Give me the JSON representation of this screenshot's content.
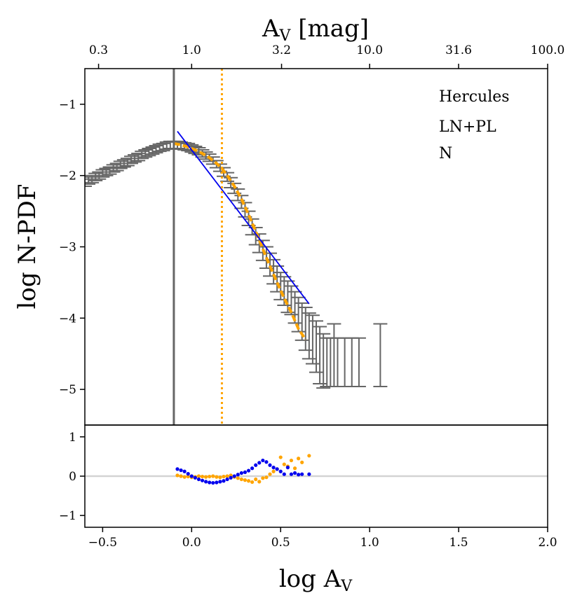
{
  "chart_data": {
    "type": "scatter",
    "top_axis": {
      "label_main": "A",
      "label_sub": "V",
      "label_rest": " [mag]",
      "tick_values": [
        -0.5229,
        0.0,
        0.5051,
        1.0,
        1.4997,
        2.0
      ],
      "tick_labels": [
        "0.3",
        "1.0",
        "3.2",
        "10.0",
        "31.6",
        "100.0"
      ]
    },
    "x_axis": {
      "label_main": "log A",
      "label_sub": "V",
      "range": [
        -0.6,
        2.0
      ],
      "ticks": [
        -0.5,
        0.0,
        0.5,
        1.0,
        1.5,
        2.0
      ],
      "tick_labels": [
        "−0.5",
        "0.0",
        "0.5",
        "1.0",
        "1.5",
        "2.0"
      ]
    },
    "main_panel": {
      "ylabel": "log N-PDF",
      "ylim": [
        -5.5,
        -0.5
      ],
      "yticks": [
        -1,
        -2,
        -3,
        -4,
        -5
      ],
      "ytick_labels": [
        "−1",
        "−2",
        "−3",
        "−4",
        "−5"
      ],
      "annotations": [
        "Hercules",
        "LN+PL",
        "N"
      ],
      "vline_gray": -0.1,
      "vline_orange": 0.17,
      "pdf_points": [
        [
          -0.6,
          -2.1
        ],
        [
          -0.58,
          -2.07
        ],
        [
          -0.56,
          -2.05
        ],
        [
          -0.54,
          -2.02
        ],
        [
          -0.52,
          -2.0
        ],
        [
          -0.5,
          -1.97
        ],
        [
          -0.48,
          -1.95
        ],
        [
          -0.46,
          -1.93
        ],
        [
          -0.44,
          -1.9
        ],
        [
          -0.42,
          -1.88
        ],
        [
          -0.4,
          -1.85
        ],
        [
          -0.38,
          -1.83
        ],
        [
          -0.36,
          -1.81
        ],
        [
          -0.34,
          -1.78
        ],
        [
          -0.32,
          -1.76
        ],
        [
          -0.3,
          -1.74
        ],
        [
          -0.28,
          -1.71
        ],
        [
          -0.26,
          -1.69
        ],
        [
          -0.24,
          -1.67
        ],
        [
          -0.22,
          -1.65
        ],
        [
          -0.2,
          -1.63
        ],
        [
          -0.18,
          -1.61
        ],
        [
          -0.16,
          -1.6
        ],
        [
          -0.14,
          -1.58
        ],
        [
          -0.12,
          -1.57
        ],
        [
          -0.1,
          -1.57
        ],
        [
          -0.08,
          -1.57
        ],
        [
          -0.06,
          -1.58
        ],
        [
          -0.04,
          -1.59
        ],
        [
          -0.02,
          -1.6
        ],
        [
          0.0,
          -1.62
        ],
        [
          0.02,
          -1.64
        ],
        [
          0.04,
          -1.66
        ],
        [
          0.06,
          -1.69
        ],
        [
          0.08,
          -1.72
        ],
        [
          0.1,
          -1.75
        ],
        [
          0.12,
          -1.79
        ],
        [
          0.14,
          -1.84
        ],
        [
          0.16,
          -1.89
        ],
        [
          0.18,
          -1.95
        ],
        [
          0.2,
          -2.02
        ],
        [
          0.22,
          -2.1
        ],
        [
          0.24,
          -2.18
        ],
        [
          0.26,
          -2.27
        ],
        [
          0.28,
          -2.37
        ],
        [
          0.3,
          -2.48
        ],
        [
          0.32,
          -2.6
        ],
        [
          0.34,
          -2.72
        ],
        [
          0.36,
          -2.85
        ],
        [
          0.38,
          -2.95
        ],
        [
          0.4,
          -3.05
        ],
        [
          0.42,
          -3.15
        ],
        [
          0.44,
          -3.25
        ],
        [
          0.46,
          -3.35
        ],
        [
          0.48,
          -3.45
        ],
        [
          0.5,
          -3.55
        ],
        [
          0.52,
          -3.62
        ],
        [
          0.54,
          -3.7
        ],
        [
          0.56,
          -3.75
        ],
        [
          0.58,
          -3.85
        ],
        [
          0.6,
          -3.95
        ],
        [
          0.62,
          -4.05
        ],
        [
          0.64,
          -4.15
        ],
        [
          0.66,
          -4.25
        ],
        [
          0.68,
          -4.3
        ],
        [
          0.7,
          -4.4
        ],
        [
          0.72,
          -4.52
        ],
        [
          0.74,
          -4.6
        ],
        [
          0.76,
          -4.62
        ],
        [
          0.78,
          -4.62
        ],
        [
          0.8,
          -4.52
        ],
        [
          0.82,
          -4.62
        ],
        [
          0.86,
          -4.62
        ],
        [
          0.9,
          -4.62
        ],
        [
          0.94,
          -4.62
        ],
        [
          1.06,
          -4.52
        ]
      ],
      "pdf_errors": [
        0.05,
        0.05,
        0.05,
        0.05,
        0.05,
        0.05,
        0.05,
        0.05,
        0.05,
        0.05,
        0.05,
        0.05,
        0.05,
        0.05,
        0.05,
        0.05,
        0.05,
        0.05,
        0.05,
        0.05,
        0.05,
        0.05,
        0.05,
        0.05,
        0.05,
        0.05,
        0.05,
        0.05,
        0.05,
        0.05,
        0.05,
        0.05,
        0.05,
        0.05,
        0.05,
        0.05,
        0.05,
        0.05,
        0.05,
        0.06,
        0.06,
        0.07,
        0.07,
        0.08,
        0.09,
        0.1,
        0.1,
        0.11,
        0.12,
        0.13,
        0.14,
        0.15,
        0.16,
        0.17,
        0.18,
        0.19,
        0.2,
        0.22,
        0.2,
        0.22,
        0.24,
        0.26,
        0.3,
        0.32,
        0.34,
        0.36,
        0.4,
        0.38,
        0.34,
        0.34,
        0.44,
        0.34,
        0.34,
        0.34,
        0.34,
        0.44
      ],
      "lognormal_fit": [
        [
          -0.1,
          -1.55
        ],
        [
          -0.06,
          -1.57
        ],
        [
          -0.02,
          -1.6
        ],
        [
          0.02,
          -1.64
        ],
        [
          0.06,
          -1.69
        ],
        [
          0.1,
          -1.75
        ],
        [
          0.14,
          -1.83
        ],
        [
          0.17,
          -1.9
        ],
        [
          0.2,
          -2.0
        ],
        [
          0.24,
          -2.15
        ],
        [
          0.28,
          -2.33
        ],
        [
          0.32,
          -2.55
        ],
        [
          0.36,
          -2.78
        ],
        [
          0.4,
          -3.03
        ],
        [
          0.44,
          -3.27
        ],
        [
          0.48,
          -3.5
        ],
        [
          0.52,
          -3.72
        ],
        [
          0.56,
          -3.92
        ],
        [
          0.6,
          -4.15
        ],
        [
          0.64,
          -4.3
        ]
      ],
      "powerlaw_fit": [
        [
          -0.08,
          -1.38
        ],
        [
          0.66,
          -3.8
        ]
      ]
    },
    "residual_panel": {
      "ylim": [
        -1.3,
        1.3
      ],
      "yticks": [
        1,
        0,
        -1
      ],
      "ytick_labels": [
        "1",
        "0",
        "−1"
      ],
      "baseline": 0,
      "blue_points": [
        [
          -0.08,
          0.18
        ],
        [
          -0.06,
          0.15
        ],
        [
          -0.04,
          0.12
        ],
        [
          -0.02,
          0.06
        ],
        [
          0.0,
          0.0
        ],
        [
          0.02,
          -0.04
        ],
        [
          0.04,
          -0.08
        ],
        [
          0.06,
          -0.11
        ],
        [
          0.08,
          -0.14
        ],
        [
          0.1,
          -0.16
        ],
        [
          0.12,
          -0.17
        ],
        [
          0.14,
          -0.16
        ],
        [
          0.16,
          -0.14
        ],
        [
          0.18,
          -0.12
        ],
        [
          0.2,
          -0.08
        ],
        [
          0.22,
          -0.04
        ],
        [
          0.24,
          0.0
        ],
        [
          0.26,
          0.04
        ],
        [
          0.28,
          0.08
        ],
        [
          0.3,
          0.1
        ],
        [
          0.32,
          0.14
        ],
        [
          0.34,
          0.2
        ],
        [
          0.36,
          0.28
        ],
        [
          0.38,
          0.34
        ],
        [
          0.4,
          0.4
        ],
        [
          0.42,
          0.36
        ],
        [
          0.44,
          0.28
        ],
        [
          0.46,
          0.22
        ],
        [
          0.48,
          0.18
        ],
        [
          0.5,
          0.12
        ],
        [
          0.52,
          0.05
        ],
        [
          0.54,
          0.22
        ],
        [
          0.56,
          0.05
        ],
        [
          0.58,
          0.08
        ],
        [
          0.6,
          0.04
        ],
        [
          0.62,
          0.05
        ],
        [
          0.66,
          0.05
        ]
      ],
      "orange_points": [
        [
          -0.08,
          0.02
        ],
        [
          -0.06,
          0.0
        ],
        [
          -0.04,
          -0.02
        ],
        [
          -0.02,
          -0.01
        ],
        [
          0.0,
          -0.03
        ],
        [
          0.02,
          -0.02
        ],
        [
          0.04,
          0.0
        ],
        [
          0.06,
          -0.01
        ],
        [
          0.08,
          -0.02
        ],
        [
          0.1,
          -0.01
        ],
        [
          0.12,
          0.0
        ],
        [
          0.14,
          -0.02
        ],
        [
          0.16,
          -0.03
        ],
        [
          0.18,
          -0.01
        ],
        [
          0.2,
          0.0
        ],
        [
          0.22,
          0.02
        ],
        [
          0.24,
          -0.02
        ],
        [
          0.26,
          -0.05
        ],
        [
          0.28,
          -0.08
        ],
        [
          0.3,
          -0.1
        ],
        [
          0.32,
          -0.12
        ],
        [
          0.34,
          -0.15
        ],
        [
          0.36,
          -0.08
        ],
        [
          0.38,
          -0.14
        ],
        [
          0.4,
          -0.05
        ],
        [
          0.42,
          -0.03
        ],
        [
          0.44,
          0.05
        ],
        [
          0.46,
          0.12
        ],
        [
          0.48,
          0.18
        ],
        [
          0.5,
          0.48
        ],
        [
          0.52,
          0.3
        ],
        [
          0.54,
          0.25
        ],
        [
          0.56,
          0.4
        ],
        [
          0.58,
          0.2
        ],
        [
          0.6,
          0.45
        ],
        [
          0.62,
          0.35
        ],
        [
          0.66,
          0.52
        ]
      ]
    },
    "colors": {
      "gray": "#666666",
      "orange": "#ffa500",
      "blue": "#0000ee",
      "baseline": "#d3d3d3"
    }
  }
}
